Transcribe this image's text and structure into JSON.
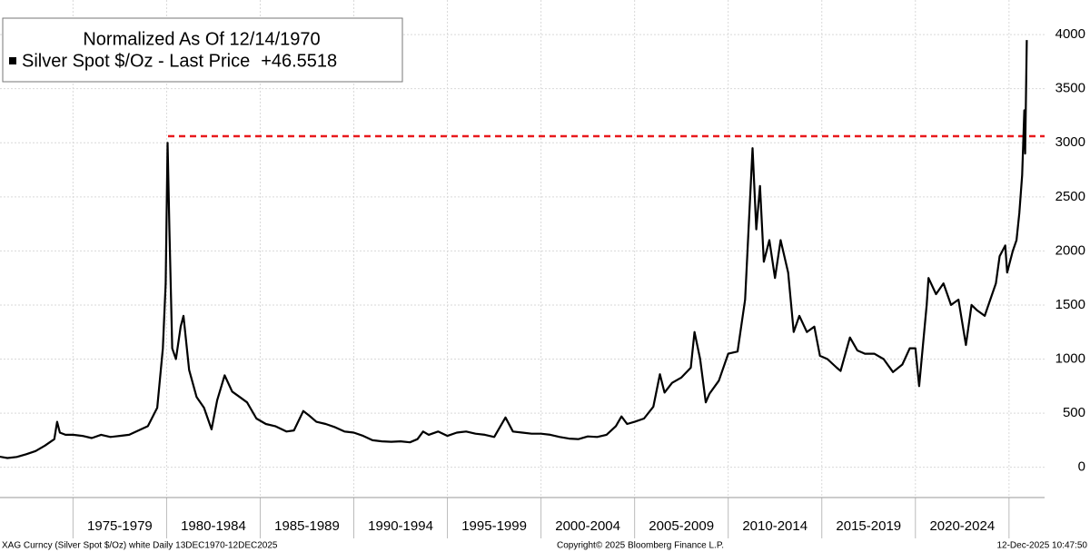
{
  "chart_data": {
    "type": "line",
    "legend_title": "Normalized As Of 12/14/1970",
    "last_price": {
      "value": 46.5518,
      "label": "+46.5518"
    },
    "series": [
      {
        "name": "Silver Spot $/Oz - Last Price",
        "color": "#000000",
        "x": [
          1971.0,
          1971.5,
          1972.0,
          1972.5,
          1973.0,
          1973.5,
          1974.0,
          1974.15,
          1974.3,
          1974.6,
          1975.0,
          1975.5,
          1976.0,
          1976.5,
          1977.0,
          1977.5,
          1978.0,
          1978.5,
          1979.0,
          1979.5,
          1979.8,
          1979.95,
          1980.05,
          1980.15,
          1980.3,
          1980.5,
          1980.75,
          1980.9,
          1981.2,
          1981.6,
          1982.0,
          1982.4,
          1982.7,
          1983.1,
          1983.5,
          1983.9,
          1984.3,
          1984.8,
          1985.3,
          1985.8,
          1986.4,
          1986.8,
          1987.3,
          1987.6,
          1988.0,
          1988.5,
          1989.0,
          1989.5,
          1990.0,
          1990.5,
          1991.0,
          1991.5,
          1992.0,
          1992.5,
          1993.0,
          1993.4,
          1993.7,
          1994.0,
          1994.5,
          1995.0,
          1995.5,
          1996.0,
          1996.5,
          1997.0,
          1997.5,
          1998.1,
          1998.5,
          1999.0,
          1999.5,
          2000.0,
          2000.5,
          2001.0,
          2001.5,
          2002.0,
          2002.5,
          2003.0,
          2003.5,
          2004.0,
          2004.3,
          2004.6,
          2005.0,
          2005.5,
          2006.0,
          2006.35,
          2006.6,
          2007.0,
          2007.5,
          2008.0,
          2008.2,
          2008.5,
          2008.8,
          2009.0,
          2009.5,
          2010.0,
          2010.5,
          2010.9,
          2011.3,
          2011.5,
          2011.7,
          2011.9,
          2012.2,
          2012.5,
          2012.8,
          2013.2,
          2013.5,
          2013.8,
          2014.2,
          2014.6,
          2014.9,
          2015.3,
          2015.8,
          2016.0,
          2016.5,
          2016.9,
          2017.3,
          2017.8,
          2018.3,
          2018.8,
          2019.3,
          2019.7,
          2020.0,
          2020.2,
          2020.6,
          2020.7,
          2021.1,
          2021.5,
          2021.9,
          2022.3,
          2022.7,
          2023.0,
          2023.3,
          2023.7,
          2023.9,
          2024.3,
          2024.5,
          2024.8,
          2024.9,
          2025.2,
          2025.4,
          2025.55,
          2025.7,
          2025.78,
          2025.82,
          2025.86,
          2025.92,
          2025.95
        ],
        "values": [
          100,
          85,
          95,
          120,
          150,
          200,
          260,
          420,
          320,
          300,
          300,
          290,
          270,
          300,
          280,
          290,
          300,
          340,
          380,
          550,
          1100,
          1700,
          3000,
          2200,
          1100,
          1000,
          1300,
          1400,
          900,
          650,
          550,
          350,
          620,
          850,
          700,
          650,
          600,
          450,
          400,
          380,
          330,
          340,
          520,
          480,
          420,
          400,
          370,
          330,
          320,
          290,
          250,
          240,
          235,
          240,
          230,
          260,
          330,
          300,
          330,
          290,
          320,
          330,
          310,
          300,
          280,
          460,
          330,
          320,
          310,
          310,
          300,
          280,
          265,
          260,
          285,
          280,
          300,
          380,
          470,
          400,
          420,
          450,
          560,
          860,
          690,
          780,
          830,
          920,
          1250,
          1000,
          600,
          680,
          800,
          1050,
          1070,
          1550,
          2950,
          2200,
          2600,
          1900,
          2100,
          1750,
          2100,
          1800,
          1250,
          1400,
          1250,
          1300,
          1030,
          1000,
          920,
          890,
          1200,
          1080,
          1050,
          1050,
          1000,
          880,
          950,
          1100,
          1100,
          750,
          1500,
          1750,
          1600,
          1700,
          1500,
          1550,
          1130,
          1500,
          1450,
          1400,
          1500,
          1700,
          1950,
          2050,
          1800,
          2000,
          2100,
          2350,
          2700,
          3100,
          3300,
          2900,
          3600,
          3950
        ]
      }
    ],
    "reference_line": {
      "value": 3061,
      "color": "#e8191c"
    },
    "xlim": [
      1971.1,
      2026.9
    ],
    "x_bands": [
      {
        "start": 1975,
        "end": 1980,
        "label": "1975-1979"
      },
      {
        "start": 1980,
        "end": 1985,
        "label": "1980-1984"
      },
      {
        "start": 1985,
        "end": 1990,
        "label": "1985-1989"
      },
      {
        "start": 1990,
        "end": 1995,
        "label": "1990-1994"
      },
      {
        "start": 1995,
        "end": 2000,
        "label": "1995-1999"
      },
      {
        "start": 2000,
        "end": 2005,
        "label": "2000-2004"
      },
      {
        "start": 2005,
        "end": 2010,
        "label": "2005-2009"
      },
      {
        "start": 2010,
        "end": 2015,
        "label": "2010-2014"
      },
      {
        "start": 2015,
        "end": 2020,
        "label": "2015-2019"
      },
      {
        "start": 2020,
        "end": 2025,
        "label": "2020-2024"
      }
    ],
    "ylim": [
      -280,
      4320
    ],
    "yticks": [
      0,
      500,
      1000,
      1500,
      2000,
      2500,
      3000,
      3500,
      4000
    ],
    "grid": true,
    "footer_left": "XAG Curncy (Silver Spot  $/Oz) white Daily 13DEC1970-12DEC2025",
    "footer_center": "Copyright© 2025 Bloomberg Finance L.P.",
    "footer_right": "12-Dec-2025 10:47:50"
  }
}
